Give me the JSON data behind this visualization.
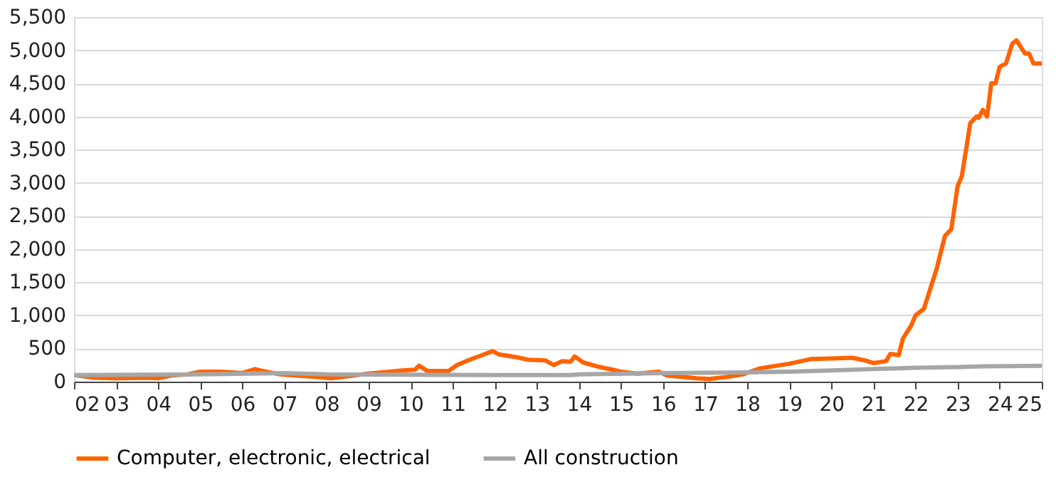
{
  "chart_data": {
    "type": "line",
    "xlim": [
      2002,
      2025
    ],
    "xticks": [
      {
        "value": 2002,
        "label": "02"
      },
      {
        "value": 2003,
        "label": "03"
      },
      {
        "value": 2004,
        "label": "04"
      },
      {
        "value": 2005,
        "label": "05"
      },
      {
        "value": 2006,
        "label": "06"
      },
      {
        "value": 2007,
        "label": "07"
      },
      {
        "value": 2008,
        "label": "08"
      },
      {
        "value": 2009,
        "label": "09"
      },
      {
        "value": 2010,
        "label": "10"
      },
      {
        "value": 2011,
        "label": "11"
      },
      {
        "value": 2012,
        "label": "12"
      },
      {
        "value": 2013,
        "label": "13"
      },
      {
        "value": 2014,
        "label": "14"
      },
      {
        "value": 2015,
        "label": "15"
      },
      {
        "value": 2016,
        "label": "16"
      },
      {
        "value": 2017,
        "label": "17"
      },
      {
        "value": 2018,
        "label": "18"
      },
      {
        "value": 2019,
        "label": "19"
      },
      {
        "value": 2020,
        "label": "20"
      },
      {
        "value": 2021,
        "label": "21"
      },
      {
        "value": 2022,
        "label": "22"
      },
      {
        "value": 2023,
        "label": "23"
      },
      {
        "value": 2024,
        "label": "24"
      },
      {
        "value": 2025,
        "label": "25"
      }
    ],
    "ylim": [
      0,
      5500
    ],
    "yticks": [
      {
        "value": 0,
        "label": "0"
      },
      {
        "value": 500,
        "label": "500"
      },
      {
        "value": 1000,
        "label": "1,000"
      },
      {
        "value": 1500,
        "label": "1,500"
      },
      {
        "value": 2000,
        "label": "2,000"
      },
      {
        "value": 2500,
        "label": "2,500"
      },
      {
        "value": 3000,
        "label": "3,000"
      },
      {
        "value": 3500,
        "label": "3,500"
      },
      {
        "value": 4000,
        "label": "4,000"
      },
      {
        "value": 4500,
        "label": "4,500"
      },
      {
        "value": 5000,
        "label": "5,000"
      },
      {
        "value": 5500,
        "label": "5,500"
      }
    ],
    "grid": "y",
    "legend": "bottom",
    "marker": "none",
    "line_style": "solid",
    "series": [
      {
        "name": "Computer, electronic, electrical",
        "color": "#ff6200",
        "x": [
          2002.0,
          2002.5,
          2003.0,
          2003.8,
          2004.0,
          2004.3,
          2004.7,
          2005.0,
          2005.5,
          2006.0,
          2006.3,
          2006.5,
          2006.9,
          2007.3,
          2007.8,
          2008.1,
          2008.5,
          2009.0,
          2009.5,
          2009.8,
          2010.1,
          2010.2,
          2010.4,
          2010.9,
          2011.1,
          2011.4,
          2011.7,
          2011.95,
          2012.1,
          2012.5,
          2012.8,
          2013.2,
          2013.4,
          2013.6,
          2013.8,
          2013.9,
          2014.1,
          2014.5,
          2014.8,
          2015.0,
          2015.4,
          2015.7,
          2015.9,
          2016.1,
          2016.5,
          2016.8,
          2017.1,
          2017.5,
          2017.9,
          2018.3,
          2018.7,
          2019.0,
          2019.5,
          2020.0,
          2020.5,
          2020.8,
          2021.0,
          2021.3,
          2021.4,
          2021.6,
          2021.7,
          2021.9,
          2022.0,
          2022.2,
          2022.3,
          2022.5,
          2022.7,
          2022.85,
          2023.0,
          2023.1,
          2023.3,
          2023.45,
          2023.5,
          2023.6,
          2023.7,
          2023.8,
          2023.9,
          2024.0,
          2024.15,
          2024.3,
          2024.4,
          2024.6,
          2024.7,
          2024.8,
          2025.0
        ],
        "values": [
          100,
          60,
          50,
          60,
          50,
          90,
          110,
          150,
          150,
          130,
          190,
          160,
          110,
          90,
          70,
          50,
          80,
          120,
          150,
          170,
          180,
          240,
          160,
          160,
          250,
          330,
          400,
          460,
          410,
          370,
          330,
          320,
          250,
          310,
          300,
          380,
          290,
          220,
          180,
          150,
          120,
          140,
          150,
          90,
          70,
          50,
          40,
          70,
          110,
          200,
          240,
          270,
          340,
          350,
          360,
          320,
          280,
          310,
          420,
          400,
          650,
          850,
          1000,
          1100,
          1300,
          1700,
          2200,
          2300,
          2950,
          3100,
          3900,
          4000,
          3980,
          4100,
          4000,
          4500,
          4500,
          4750,
          4800,
          5100,
          5150,
          4950,
          4950,
          4800,
          4800
        ]
      },
      {
        "name": "All construction",
        "color": "#a6a6a6",
        "x": [
          2002.0,
          2005.0,
          2007.0,
          2008.0,
          2012.0,
          2013.8,
          2014.0,
          2016.0,
          2018.0,
          2019.0,
          2020.0,
          2021.0,
          2022.0,
          2023.0,
          2023.6,
          2025.0
        ],
        "values": [
          100,
          110,
          130,
          110,
          100,
          100,
          110,
          130,
          140,
          150,
          170,
          190,
          210,
          220,
          230,
          240
        ]
      }
    ]
  }
}
